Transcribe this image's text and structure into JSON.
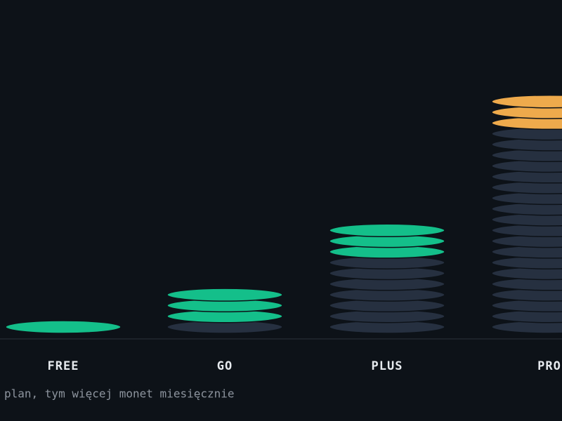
{
  "plans": [
    {
      "label": "FREE",
      "coins": 1,
      "highlighted": 1,
      "color": "#14bf8a"
    },
    {
      "label": "GO",
      "coins": 4,
      "highlighted": 3,
      "color": "#14bf8a"
    },
    {
      "label": "PLUS",
      "coins": 10,
      "highlighted": 3,
      "color": "#14bf8a"
    },
    {
      "label": "PRO",
      "coins": 22,
      "highlighted": 3,
      "color": "#eeaa4c"
    }
  ],
  "caption": "plan, tym więcej monet miesięcznie"
}
